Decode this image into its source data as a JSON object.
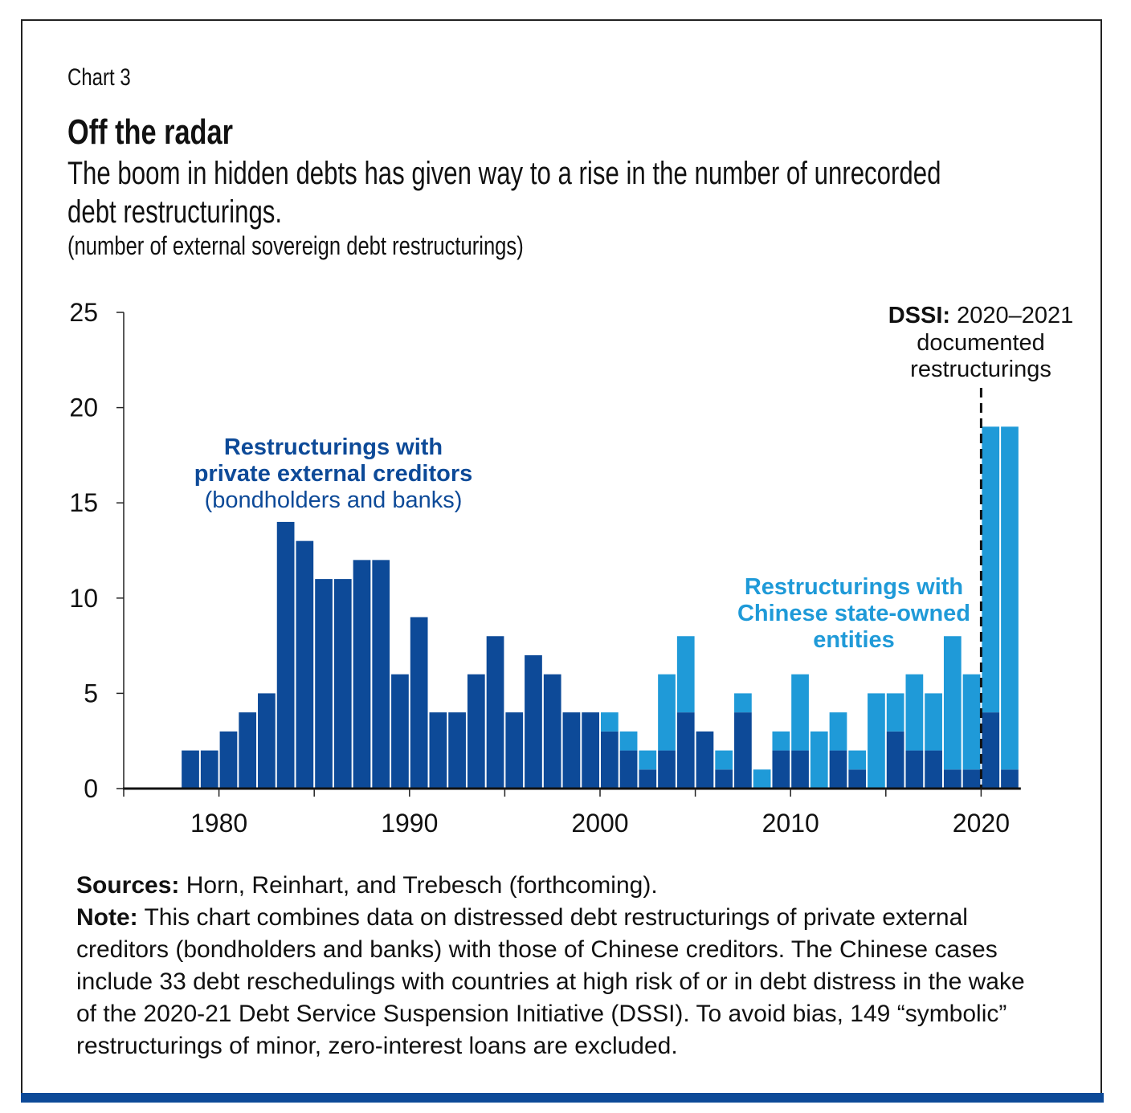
{
  "chart_number": "Chart 3",
  "chart_data": {
    "type": "bar",
    "stacked": true,
    "title": "Off the radar",
    "subtitle": "The boom in hidden debts has given way to a rise in the number of unrecorded debt restructurings.",
    "ylabel": "(number of external sovereign debt restructurings)",
    "xlabel": "",
    "ylim": [
      0,
      25
    ],
    "xlim": [
      1975,
      2022
    ],
    "yticks": [
      "0",
      "5",
      "10",
      "15",
      "20",
      "25"
    ],
    "xticks": [
      "1980",
      "1990",
      "2000",
      "2010",
      "2020"
    ],
    "categories": [
      1978,
      1979,
      1980,
      1981,
      1982,
      1983,
      1984,
      1985,
      1986,
      1987,
      1988,
      1989,
      1990,
      1991,
      1992,
      1993,
      1994,
      1995,
      1996,
      1997,
      1998,
      1999,
      2000,
      2001,
      2002,
      2003,
      2004,
      2005,
      2006,
      2007,
      2008,
      2009,
      2010,
      2011,
      2012,
      2013,
      2014,
      2015,
      2016,
      2017,
      2018,
      2019,
      2020,
      2021
    ],
    "series": [
      {
        "name": "Restructurings with private external creditors (bondholders and banks)",
        "color": "#0d4a98",
        "values": [
          2,
          2,
          3,
          4,
          5,
          14,
          13,
          11,
          11,
          12,
          12,
          6,
          9,
          4,
          4,
          6,
          8,
          4,
          7,
          6,
          4,
          4,
          3,
          2,
          1,
          2,
          4,
          3,
          1,
          4,
          0,
          2,
          2,
          0,
          2,
          1,
          0,
          3,
          2,
          2,
          1,
          1,
          4,
          1
        ]
      },
      {
        "name": "Restructurings with Chinese state-owned entities",
        "color": "#1f9ad8",
        "values": [
          0,
          0,
          0,
          0,
          0,
          0,
          0,
          0,
          0,
          0,
          0,
          0,
          0,
          0,
          0,
          0,
          0,
          0,
          0,
          0,
          0,
          0,
          1,
          1,
          1,
          4,
          4,
          0,
          1,
          1,
          1,
          1,
          4,
          3,
          2,
          1,
          5,
          2,
          4,
          3,
          7,
          5,
          15,
          18
        ]
      }
    ],
    "annotations": {
      "private_label": [
        "Restructurings with",
        "private external creditors",
        "(bondholders and banks)"
      ],
      "chinese_label": [
        "Restructurings with",
        "Chinese state-owned",
        "entities"
      ],
      "dssi_bold": "DSSI:",
      "dssi_lines": [
        " 2020–2021",
        "documented",
        "restructurings"
      ],
      "dssi_year": 2020
    },
    "grid": false,
    "legend": "none"
  },
  "notes": {
    "sources_label": "Sources:",
    "sources_text": " Horn, Reinhart, and Trebesch (forthcoming).",
    "note_label": "Note:",
    "note_text": " This chart combines data on distressed debt restructurings of private external creditors (bondholders and banks) with those of Chinese creditors. The Chinese cases include 33 debt reschedulings with countries at high risk of or in debt distress in the wake of the 2020-21 Debt Service Suspension Initiative (DSSI). To avoid bias, 149 “symbolic” restructurings of minor, zero-interest loans are excluded."
  }
}
